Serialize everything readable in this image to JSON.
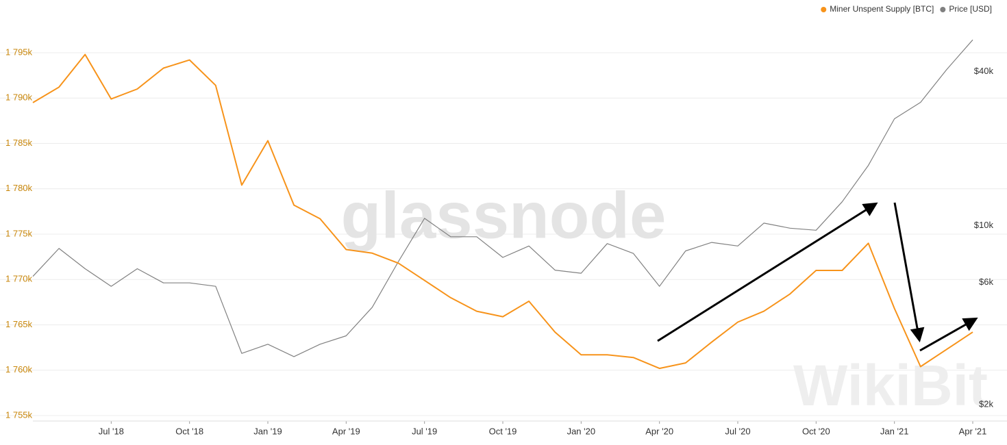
{
  "chart_data": {
    "type": "line",
    "watermarks": [
      "glassnode",
      "WikiBit"
    ],
    "x": [
      "2018-04",
      "2018-05",
      "2018-06",
      "2018-07",
      "2018-08",
      "2018-09",
      "2018-10",
      "2018-11",
      "2018-12",
      "2019-01",
      "2019-02",
      "2019-03",
      "2019-04",
      "2019-05",
      "2019-06",
      "2019-07",
      "2019-08",
      "2019-09",
      "2019-10",
      "2019-11",
      "2019-12",
      "2020-01",
      "2020-02",
      "2020-03",
      "2020-04",
      "2020-05",
      "2020-06",
      "2020-07",
      "2020-08",
      "2020-09",
      "2020-10",
      "2020-11",
      "2020-12",
      "2021-01",
      "2021-02",
      "2021-03",
      "2021-04"
    ],
    "xlim": [
      "2018-04",
      "2021-04"
    ],
    "xticks": [
      {
        "value": "2018-07",
        "label": "Jul '18"
      },
      {
        "value": "2018-10",
        "label": "Oct '18"
      },
      {
        "value": "2019-01",
        "label": "Jan '19"
      },
      {
        "value": "2019-04",
        "label": "Apr '19"
      },
      {
        "value": "2019-07",
        "label": "Jul '19"
      },
      {
        "value": "2019-10",
        "label": "Oct '19"
      },
      {
        "value": "2020-01",
        "label": "Jan '20"
      },
      {
        "value": "2020-04",
        "label": "Apr '20"
      },
      {
        "value": "2020-07",
        "label": "Jul '20"
      },
      {
        "value": "2020-10",
        "label": "Oct '20"
      },
      {
        "value": "2021-01",
        "label": "Jan '21"
      },
      {
        "value": "2021-04",
        "label": "Apr '21"
      }
    ],
    "ylim": [
      1755000,
      1799000
    ],
    "yticks": [
      {
        "value": 1755000,
        "label": "1 755k"
      },
      {
        "value": 1760000,
        "label": "1 760k"
      },
      {
        "value": 1765000,
        "label": "1 765k"
      },
      {
        "value": 1770000,
        "label": "1 770k"
      },
      {
        "value": 1775000,
        "label": "1 775k"
      },
      {
        "value": 1780000,
        "label": "1 780k"
      },
      {
        "value": 1785000,
        "label": "1 785k"
      },
      {
        "value": 1790000,
        "label": "1 790k"
      },
      {
        "value": 1795000,
        "label": "1 795k"
      }
    ],
    "y2lim": [
      2000,
      72600
    ],
    "y2log": true,
    "y2ticks": [
      {
        "value": 2000,
        "label": "$2k"
      },
      {
        "value": 6000,
        "label": "$6k"
      },
      {
        "value": 10000,
        "label": "$10k"
      },
      {
        "value": 40000,
        "label": "$40k"
      }
    ],
    "grid": true,
    "legend": "top-right",
    "series": [
      {
        "name": "Miner Unspent Supply [BTC]",
        "color": "#f7931a",
        "values": [
          1789500,
          1791200,
          1794800,
          1789900,
          1791000,
          1793300,
          1794200,
          1791400,
          1780400,
          1785300,
          1778200,
          1776700,
          1773300,
          1772900,
          1771800,
          1769900,
          1768000,
          1766500,
          1765900,
          1767600,
          1764200,
          1761700,
          1761700,
          1761400,
          1760200,
          1760800,
          1763100,
          1765300,
          1766500,
          1768400,
          1771000,
          1771000,
          1774000,
          1766800,
          1760400,
          1762300,
          1764200
        ]
      },
      {
        "name": "Price [USD]",
        "color": "#808080",
        "axis": "y2",
        "values": [
          7000,
          9000,
          7500,
          6400,
          7500,
          6600,
          6600,
          6400,
          3500,
          3800,
          3400,
          3800,
          4100,
          5300,
          8000,
          11800,
          10000,
          10000,
          8300,
          9200,
          7400,
          7200,
          9400,
          8600,
          6400,
          8800,
          9500,
          9200,
          11300,
          10800,
          10600,
          13700,
          19000,
          28900,
          33500,
          45000,
          58800
        ]
      }
    ]
  }
}
